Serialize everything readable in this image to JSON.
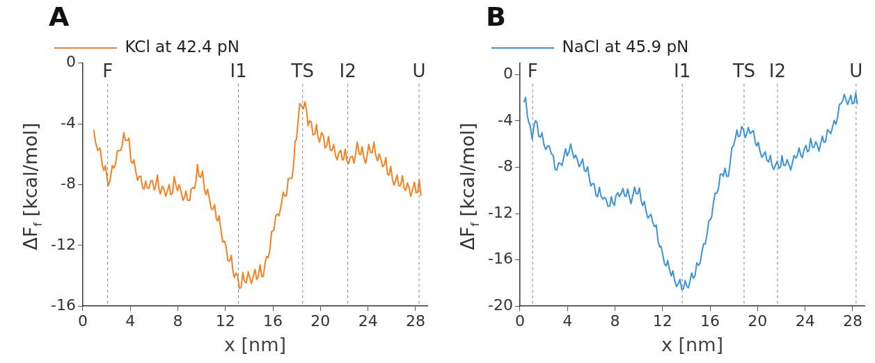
{
  "chart_data": [
    {
      "type": "line",
      "title": "A",
      "xlabel": "x [nm]",
      "ylabel": "ΔF$_{f}$ [kcal/mol]",
      "legend": "top left",
      "line_style": "solid",
      "marker": "none",
      "xlim": [
        0,
        29
      ],
      "xticks": [
        0,
        4,
        8,
        12,
        16,
        20,
        24,
        28
      ],
      "ylim": [
        -16,
        0
      ],
      "yticks": [
        -16,
        -12,
        -8,
        -4,
        0
      ],
      "ref_lines": [
        {
          "axis": "x",
          "value": 2.09,
          "label": "F",
          "color": "#808080",
          "line_style": "dashed"
        },
        {
          "axis": "x",
          "value": 13.1,
          "label": "I1",
          "color": "#808080",
          "line_style": "dashed"
        },
        {
          "axis": "x",
          "value": 18.5,
          "label": "TS",
          "color": "#808080",
          "line_style": "dashed"
        },
        {
          "axis": "x",
          "value": 22.3,
          "label": "I2",
          "color": "#808080",
          "line_style": "dashed"
        },
        {
          "axis": "x",
          "value": 28.3,
          "label": "U",
          "color": "#808080",
          "line_style": "dashed"
        }
      ],
      "series": [
        {
          "name": "KCl at 42.4 pN",
          "color": "#f58220",
          "x": [
            0.93,
            1.07,
            1.26,
            1.45,
            1.65,
            1.78,
            1.9,
            2.13,
            2.29,
            2.48,
            2.62,
            2.75,
            2.91,
            3.2,
            3.33,
            3.45,
            3.58,
            3.78,
            3.88,
            4.07,
            4.19,
            4.3,
            4.46,
            4.61,
            4.73,
            4.88,
            5.04,
            5.17,
            5.29,
            5.43,
            5.58,
            5.72,
            5.85,
            6.01,
            6.12,
            6.28,
            6.4,
            6.53,
            6.69,
            6.82,
            6.98,
            7.13,
            7.27,
            7.4,
            7.56,
            7.69,
            7.85,
            7.98,
            8.1,
            8.24,
            8.43,
            8.57,
            8.68,
            8.82,
            9.01,
            9.11,
            9.26,
            9.4,
            9.53,
            9.65,
            9.79,
            9.92,
            10.08,
            10.23,
            10.37,
            10.5,
            10.66,
            10.81,
            10.95,
            11.09,
            11.24,
            11.34,
            11.47,
            11.63,
            11.78,
            11.92,
            12.05,
            12.21,
            12.36,
            12.5,
            12.64,
            12.75,
            12.89,
            13.02,
            13.18,
            13.33,
            13.47,
            13.6,
            13.76,
            13.92,
            14.05,
            14.19,
            14.34,
            14.5,
            14.63,
            14.77,
            14.92,
            15.06,
            15.19,
            15.35,
            15.47,
            15.6,
            15.74,
            15.89,
            16.09,
            16.24,
            16.38,
            16.51,
            16.67,
            16.86,
            17.02,
            17.15,
            17.29,
            17.44,
            17.6,
            17.73,
            17.87,
            17.98,
            18.12,
            18.26,
            18.41,
            18.55,
            18.7,
            18.84,
            18.95,
            19.09,
            19.22,
            19.38,
            19.54,
            19.67,
            19.77,
            19.92,
            20.1,
            20.25,
            20.39,
            20.54,
            20.68,
            20.83,
            20.97,
            21.12,
            21.28,
            21.41,
            21.55,
            21.71,
            21.84,
            21.94,
            22.09,
            22.23,
            22.38,
            22.52,
            22.67,
            22.83,
            22.97,
            23.1,
            23.26,
            23.39,
            23.51,
            23.64,
            23.8,
            23.93,
            24.07,
            24.22,
            24.36,
            24.5,
            24.65,
            24.81,
            24.94,
            25.1,
            25.23,
            25.39,
            25.5,
            25.64,
            25.78,
            25.91,
            26.05,
            26.18,
            26.32,
            26.45,
            26.59,
            26.74,
            26.9,
            27.03,
            27.17,
            27.32,
            27.46,
            27.6,
            27.73,
            27.91,
            28.04,
            28.18,
            28.31,
            28.45
          ],
          "values": [
            -4.43,
            -5.2,
            -5.75,
            -5.59,
            -6.75,
            -7.07,
            -6.75,
            -8.07,
            -7.76,
            -6.75,
            -6.91,
            -6.68,
            -5.78,
            -5.75,
            -5.36,
            -4.58,
            -5.09,
            -5.09,
            -4.94,
            -6.52,
            -6.6,
            -6.37,
            -7.14,
            -7.73,
            -7.48,
            -7.45,
            -8.23,
            -8.31,
            -7.76,
            -8.23,
            -8.23,
            -7.76,
            -7.73,
            -8.35,
            -8.15,
            -7.38,
            -8.23,
            -8.62,
            -8.11,
            -8.26,
            -8.77,
            -8.39,
            -8.0,
            -8.67,
            -8.54,
            -7.48,
            -8.07,
            -8.42,
            -8.0,
            -8.35,
            -9.04,
            -8.82,
            -8.42,
            -9.04,
            -9.04,
            -8.31,
            -8.2,
            -8.26,
            -7.76,
            -6.68,
            -7.45,
            -7.53,
            -7.11,
            -8.31,
            -8.67,
            -8.31,
            -8.93,
            -9.6,
            -9.63,
            -9.32,
            -10.25,
            -10.4,
            -10.06,
            -11.02,
            -11.77,
            -11.72,
            -12.03,
            -13.01,
            -13.04,
            -12.66,
            -13.74,
            -14.13,
            -13.82,
            -13.98,
            -14.83,
            -14.75,
            -13.79,
            -14.36,
            -14.47,
            -13.74,
            -14.13,
            -14.52,
            -14.05,
            -13.59,
            -14.25,
            -14.05,
            -13.28,
            -14.05,
            -14.05,
            -13.12,
            -12.73,
            -12.81,
            -12.34,
            -11.1,
            -10.99,
            -10.06,
            -9.94,
            -10.06,
            -9.47,
            -8.51,
            -8.77,
            -8.7,
            -7.61,
            -7.58,
            -7.58,
            -6.83,
            -5.12,
            -5.05,
            -3.8,
            -2.67,
            -2.83,
            -3.03,
            -2.56,
            -3.18,
            -4.12,
            -3.8,
            -3.88,
            -4.74,
            -4.66,
            -4.04,
            -4.81,
            -5.2,
            -4.58,
            -4.81,
            -5.59,
            -5.43,
            -4.84,
            -5.75,
            -5.75,
            -5.36,
            -6.13,
            -6.37,
            -5.9,
            -5.75,
            -6.37,
            -6.37,
            -5.67,
            -6.44,
            -6.6,
            -6.21,
            -6.13,
            -6.6,
            -5.9,
            -5.2,
            -5.98,
            -6.02,
            -5.51,
            -6.21,
            -6.6,
            -6.06,
            -5.36,
            -5.9,
            -5.9,
            -5.2,
            -6.06,
            -6.44,
            -5.98,
            -6.37,
            -6.83,
            -6.68,
            -6.21,
            -7.3,
            -7.38,
            -6.8,
            -7.61,
            -8.04,
            -7.76,
            -7.38,
            -8.07,
            -8.07,
            -7.42,
            -8.23,
            -8.39,
            -7.89,
            -8.23,
            -8.77,
            -8.39,
            -7.84,
            -8.54,
            -8.51,
            -7.69,
            -8.7
          ]
        }
      ]
    },
    {
      "type": "line",
      "title": "B",
      "xlabel": "x [nm]",
      "ylabel": "ΔF$_{f}$ [kcal/mol]",
      "legend": "top left",
      "line_style": "solid",
      "marker": "none",
      "xlim": [
        0,
        29
      ],
      "xticks": [
        0,
        4,
        8,
        12,
        16,
        20,
        24,
        28
      ],
      "ylim": [
        -20,
        1
      ],
      "yticks": [
        -20,
        -16,
        -12,
        -8,
        -4,
        0
      ],
      "ref_lines": [
        {
          "axis": "x",
          "value": 1.07,
          "label": "F",
          "color": "#808080",
          "line_style": "dashed"
        },
        {
          "axis": "x",
          "value": 13.66,
          "label": "I1",
          "color": "#808080",
          "line_style": "dashed"
        },
        {
          "axis": "x",
          "value": 18.86,
          "label": "TS",
          "color": "#808080",
          "line_style": "dashed"
        },
        {
          "axis": "x",
          "value": 21.67,
          "label": "I2",
          "color": "#808080",
          "line_style": "dashed"
        },
        {
          "axis": "x",
          "value": 28.29,
          "label": "U",
          "color": "#808080",
          "line_style": "dashed"
        }
      ],
      "series": [
        {
          "name": "NaCl at 45.9 pN",
          "color": "#3a93d6",
          "x": [
            0.35,
            0.48,
            0.62,
            0.74,
            0.87,
            1.03,
            1.16,
            1.3,
            1.43,
            1.59,
            1.74,
            1.86,
            2.02,
            2.17,
            2.33,
            2.46,
            2.62,
            2.81,
            2.95,
            3.1,
            3.26,
            3.39,
            3.55,
            3.68,
            3.84,
            3.97,
            4.13,
            4.26,
            4.4,
            4.55,
            4.69,
            4.84,
            4.98,
            5.14,
            5.27,
            5.43,
            5.56,
            5.7,
            5.85,
            5.97,
            6.1,
            6.24,
            6.4,
            6.53,
            6.69,
            6.82,
            6.98,
            7.13,
            7.27,
            7.4,
            7.56,
            7.69,
            7.81,
            7.95,
            8.08,
            8.24,
            8.37,
            8.53,
            8.66,
            8.82,
            8.95,
            9.07,
            9.21,
            9.34,
            9.5,
            9.65,
            9.79,
            9.92,
            10.06,
            10.19,
            10.33,
            10.47,
            10.62,
            10.76,
            10.89,
            11.03,
            11.16,
            11.32,
            11.47,
            11.63,
            11.76,
            11.88,
            12.02,
            12.17,
            12.31,
            12.44,
            12.6,
            12.74,
            12.87,
            13.02,
            13.18,
            13.31,
            13.47,
            13.62,
            13.76,
            13.9,
            14.05,
            14.19,
            14.34,
            14.46,
            14.59,
            14.73,
            14.88,
            15.04,
            15.16,
            15.31,
            15.45,
            15.6,
            15.74,
            15.89,
            16.05,
            16.14,
            16.28,
            16.43,
            16.57,
            16.71,
            16.86,
            17.02,
            17.11,
            17.25,
            17.4,
            17.54,
            17.67,
            17.83,
            17.98,
            18.12,
            18.26,
            18.37,
            18.51,
            18.66,
            18.8,
            18.95,
            19.09,
            19.22,
            19.38,
            19.52,
            19.65,
            19.81,
            19.92,
            20.06,
            20.19,
            20.35,
            20.5,
            20.64,
            20.78,
            20.93,
            21.07,
            21.2,
            21.36,
            21.51,
            21.65,
            21.8,
            21.94,
            22.05,
            22.19,
            22.34,
            22.48,
            22.64,
            22.79,
            22.93,
            23.06,
            23.22,
            23.35,
            23.49,
            23.64,
            23.76,
            23.91,
            24.07,
            24.19,
            24.32,
            24.46,
            24.61,
            24.74,
            24.9,
            25.04,
            25.17,
            25.31,
            25.45,
            25.58,
            25.72,
            25.87,
            26.01,
            26.16,
            26.3,
            26.45,
            26.59,
            26.74,
            26.88,
            27.03,
            27.17,
            27.29,
            27.44,
            27.58,
            27.71,
            27.85,
            27.97,
            28.12,
            28.26,
            28.39
          ],
          "values": [
            -2.35,
            -1.98,
            -3.51,
            -4.12,
            -4.43,
            -5.59,
            -4.53,
            -3.98,
            -4.12,
            -5.35,
            -5.39,
            -5.04,
            -6.06,
            -6.47,
            -6.16,
            -6.16,
            -6.78,
            -7.02,
            -8.16,
            -8.24,
            -7.63,
            -7.69,
            -7.84,
            -7.18,
            -6.41,
            -7.02,
            -6.67,
            -6.0,
            -6.61,
            -7.22,
            -6.94,
            -7.39,
            -7.96,
            -7.69,
            -7.29,
            -8.31,
            -8.37,
            -7.96,
            -9.02,
            -9.63,
            -9.43,
            -9.43,
            -10.41,
            -10.55,
            -9.73,
            -10.49,
            -10.76,
            -10.61,
            -10.82,
            -11.37,
            -11.37,
            -10.55,
            -11.06,
            -11.31,
            -10.45,
            -10.2,
            -10.55,
            -10.24,
            -9.84,
            -10.49,
            -10.49,
            -9.88,
            -10.55,
            -11.16,
            -10.45,
            -9.73,
            -10.29,
            -10.29,
            -9.8,
            -10.86,
            -11.31,
            -10.96,
            -11.84,
            -12.39,
            -12.24,
            -12.08,
            -12.69,
            -13.14,
            -13.0,
            -14.43,
            -14.9,
            -14.84,
            -15.55,
            -16.37,
            -16.53,
            -16.06,
            -16.94,
            -17.39,
            -16.94,
            -17.8,
            -18.31,
            -18.1,
            -17.69,
            -18.57,
            -18.51,
            -17.8,
            -18.31,
            -18.41,
            -17.69,
            -17.14,
            -17.59,
            -17.39,
            -16.27,
            -16.47,
            -16.27,
            -15.35,
            -14.63,
            -14.63,
            -13.82,
            -12.65,
            -12.49,
            -12.24,
            -11.06,
            -10.24,
            -10.24,
            -9.84,
            -8.61,
            -8.61,
            -8.78,
            -8.1,
            -8.78,
            -8.78,
            -7.8,
            -6.33,
            -6.12,
            -5.55,
            -4.78,
            -5.35,
            -5.31,
            -4.49,
            -4.69,
            -5.45,
            -5.14,
            -4.57,
            -5.1,
            -4.94,
            -4.84,
            -5.86,
            -6.16,
            -5.86,
            -6.57,
            -7.14,
            -6.94,
            -6.67,
            -7.39,
            -7.55,
            -6.98,
            -7.8,
            -8.2,
            -7.8,
            -7.49,
            -8.1,
            -7.96,
            -7.02,
            -7.84,
            -7.84,
            -7.35,
            -7.8,
            -8.24,
            -7.63,
            -6.98,
            -7.22,
            -6.98,
            -6.33,
            -6.98,
            -7.18,
            -6.47,
            -6.12,
            -6.67,
            -6.57,
            -5.51,
            -6.27,
            -6.27,
            -5.8,
            -6.16,
            -6.61,
            -5.96,
            -5.31,
            -5.86,
            -5.8,
            -4.78,
            -4.9,
            -5.1,
            -4.57,
            -3.96,
            -4.29,
            -3.67,
            -2.59,
            -2.49,
            -2.24,
            -1.71,
            -2.18,
            -2.59,
            -2.18,
            -1.78,
            -2.53,
            -2.45,
            -1.57,
            -2.53
          ]
        }
      ]
    }
  ]
}
